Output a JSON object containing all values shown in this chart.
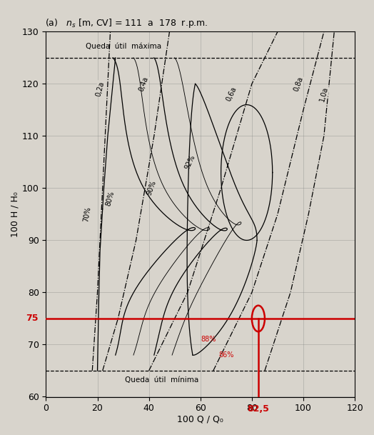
{
  "title": "(a)   $n_s$ [m, CV] = 111  a  178  r.p.m.",
  "xlabel": "100 Q / Q₀",
  "ylabel": "100 H / H₀",
  "xlim": [
    0,
    120
  ],
  "ylim": [
    60,
    130
  ],
  "xticks": [
    0,
    20,
    40,
    60,
    80,
    100,
    120
  ],
  "yticks": [
    60,
    70,
    80,
    90,
    100,
    110,
    120,
    130
  ],
  "bg_color": "#d8d4cc",
  "plot_bg_color": "#d8d4cc",
  "red_hline_y": 75,
  "red_vline_x": 82.5,
  "red_cross_x": 82.5,
  "red_cross_y": 75,
  "label_75": "75",
  "label_825": "82,5",
  "label_88": "88%",
  "label_86": "86%",
  "queda_maxima_y": 125,
  "queda_minima_y": 65
}
